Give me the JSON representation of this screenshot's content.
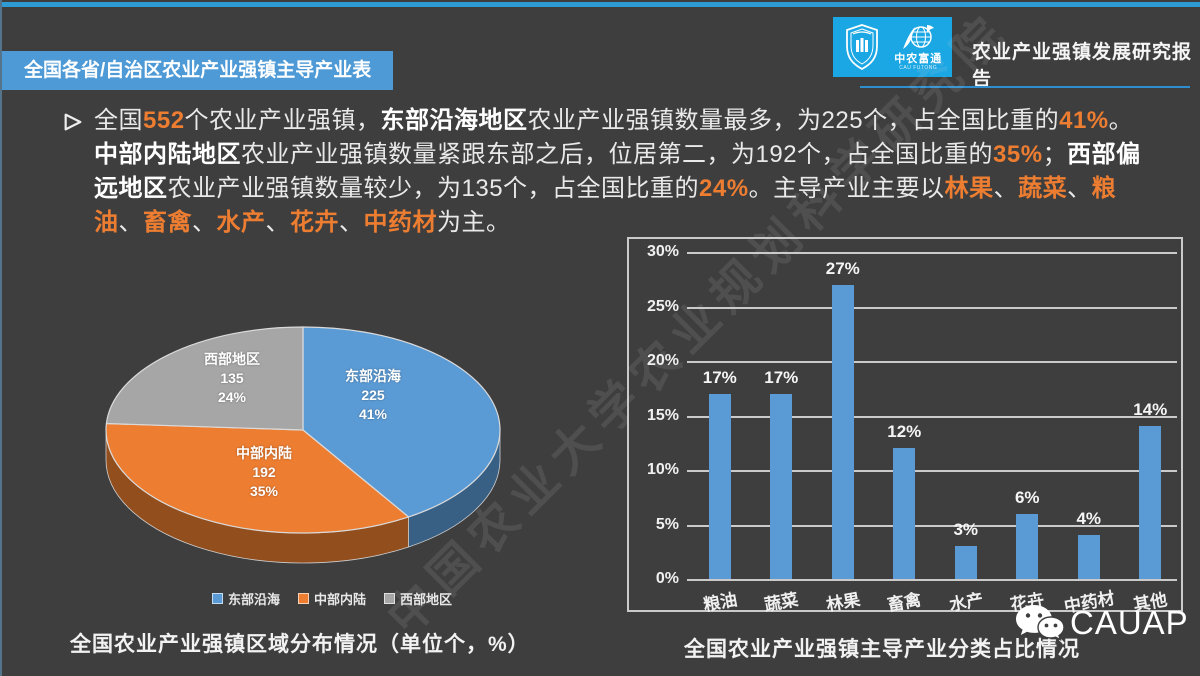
{
  "header": {
    "section_banner": "全国各省/自治区农业产业强镇主导产业表",
    "report_title": "农业产业强镇发展研究报告",
    "logo": {
      "org_cn": "中农富通",
      "org_en": "CAU FUTONG"
    }
  },
  "paragraph": {
    "runs": [
      {
        "t": "全国",
        "s": "n"
      },
      {
        "t": "552",
        "s": "o"
      },
      {
        "t": "个农业产业强镇，",
        "s": "n"
      },
      {
        "t": "东部沿海地区",
        "s": "b"
      },
      {
        "t": "农业产业强镇数量最多，为225个，占全国比重的",
        "s": "n"
      },
      {
        "t": "41%",
        "s": "o"
      },
      {
        "t": "。",
        "s": "n"
      },
      {
        "t": "中部内陆地区",
        "s": "b"
      },
      {
        "t": "农业产业强镇数量紧跟东部之后，位居第二，为192个，占全国比重的",
        "s": "n"
      },
      {
        "t": "35%",
        "s": "o"
      },
      {
        "t": "；",
        "s": "n"
      },
      {
        "t": "西部偏远地区",
        "s": "b"
      },
      {
        "t": "农业产业强镇数量较少，为135个，占全国比重的",
        "s": "n"
      },
      {
        "t": "24%",
        "s": "o"
      },
      {
        "t": "。主导产业主要以",
        "s": "n"
      },
      {
        "t": "林果",
        "s": "o"
      },
      {
        "t": "、",
        "s": "n"
      },
      {
        "t": "蔬菜",
        "s": "o"
      },
      {
        "t": "、",
        "s": "n"
      },
      {
        "t": "粮油",
        "s": "o"
      },
      {
        "t": "、",
        "s": "n"
      },
      {
        "t": "畜禽",
        "s": "o"
      },
      {
        "t": "、",
        "s": "n"
      },
      {
        "t": "水产",
        "s": "o"
      },
      {
        "t": "、",
        "s": "n"
      },
      {
        "t": "花卉",
        "s": "o"
      },
      {
        "t": "、",
        "s": "n"
      },
      {
        "t": "中药材",
        "s": "o"
      },
      {
        "t": "为主。",
        "s": "n"
      }
    ]
  },
  "chart_data": [
    {
      "type": "pie",
      "style": "3d",
      "title": "全国农业产业强镇区域分布情况（单位个，%）",
      "labels": [
        "东部沿海",
        "中部内陆",
        "西部地区"
      ],
      "values": [
        225,
        192,
        135
      ],
      "percents": [
        41,
        35,
        24
      ],
      "percent_labels": [
        "41%",
        "35%",
        "24%"
      ],
      "colors": [
        "#5B9BD5",
        "#ED7D31",
        "#A6A6A6"
      ],
      "legend_position": "bottom"
    },
    {
      "type": "bar",
      "title": "全国农业产业强镇主导产业分类占比情况",
      "categories": [
        "粮油",
        "蔬菜",
        "林果",
        "畜禽",
        "水产",
        "花卉",
        "中药材",
        "其他"
      ],
      "values": [
        17,
        17,
        27,
        12,
        3,
        6,
        4,
        14
      ],
      "unit": "%",
      "ylim": [
        0,
        30
      ],
      "ytick_step": 5,
      "bar_color": "#5B9BD5",
      "grid": true,
      "xlabel": "",
      "ylabel": ""
    }
  ],
  "captions": {
    "pie": "全国农业产业强镇区域分布情况（单位个，%）",
    "bar": "全国农业产业强镇主导产业分类占比情况"
  },
  "watermark": {
    "diagonal_text": "中国农业大学农业规划科学研究院",
    "wechat_label": "CAUAP"
  },
  "accent_colors": {
    "orange": "#ED7D31",
    "banner_blue": "#4E9AD6",
    "logo_blue": "#1BA7E3",
    "top_line_blue": "#2E9BD5"
  }
}
